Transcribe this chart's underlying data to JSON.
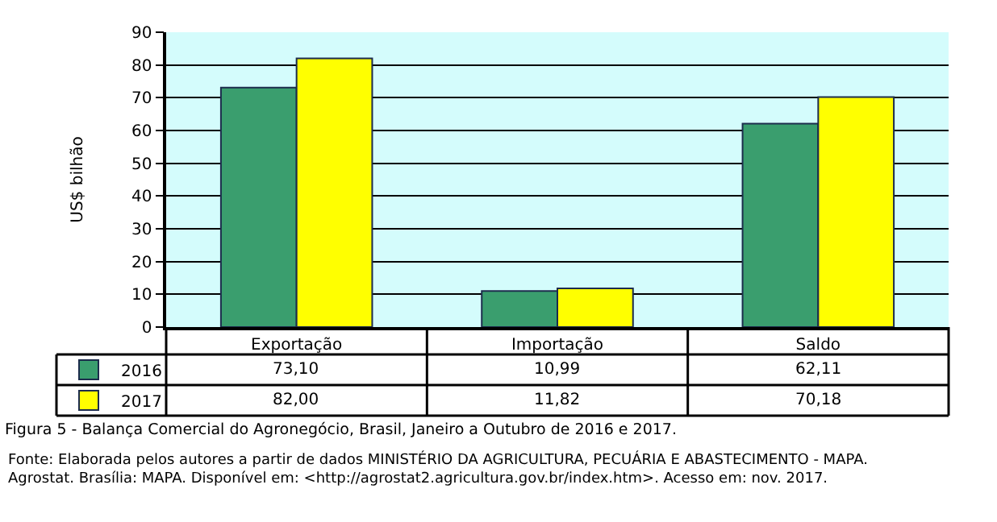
{
  "chart_data": {
    "type": "bar",
    "title": "Figura 5 - Balança Comercial do Agronegócio, Brasil, Janeiro a Outubro de 2016 e 2017.",
    "ylabel": "US$ bilhão",
    "categories": [
      "Exportação",
      "Importação",
      "Saldo"
    ],
    "series": [
      {
        "name": "2016",
        "color": "#3a9e6e",
        "values": [
          73.1,
          10.99,
          62.11
        ],
        "value_labels": [
          "73,10",
          "10,99",
          "62,11"
        ]
      },
      {
        "name": "2017",
        "color": "#ffff00",
        "values": [
          82.0,
          11.82,
          70.18
        ],
        "value_labels": [
          "82,00",
          "11,82",
          "70,18"
        ]
      }
    ],
    "ylim": [
      0,
      90
    ],
    "yticks": [
      0,
      10,
      20,
      30,
      40,
      50,
      60,
      70,
      80,
      90
    ],
    "grid": "y",
    "legend": "bottom left",
    "annotations": [
      "Fonte: Elaborada pelos autores a partir de dados MINISTÉRIO DA AGRICULTURA, PECUÁRIA E ABASTECIMENTO - MAPA. Agrostat. Brasília: MAPA. Disponível em: <http://agrostat2.agricultura.gov.br/index.htm>. Acesso em: nov. 2017."
    ]
  }
}
